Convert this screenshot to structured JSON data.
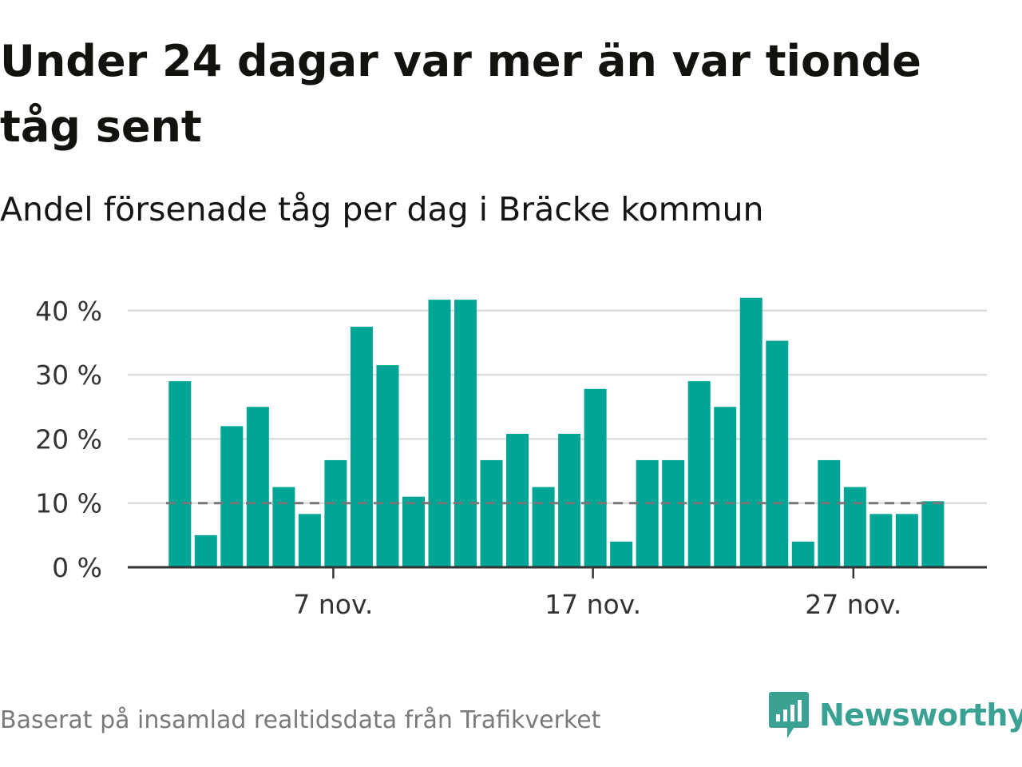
{
  "title": "Under 24 dagar var mer än var tionde tåg sent",
  "subtitle": "Andel försenade tåg per dag i Bräcke kommun",
  "footer": {
    "source": "Baserat på insamlad realtidsdata från Trafikverket"
  },
  "brand": {
    "name": "Newsworthy",
    "icon": "newsworthy-logo-icon"
  },
  "colors": {
    "bar": "#00a596",
    "reference_line": "#777777",
    "grid": "#dddddd",
    "axis": "#333333",
    "brand": "#3aa193"
  },
  "chart_data": {
    "type": "bar",
    "x_start": "1 nov.",
    "x": [
      "1",
      "2",
      "3",
      "4",
      "5",
      "6",
      "7",
      "8",
      "9",
      "10",
      "11",
      "12",
      "13",
      "14",
      "15",
      "16",
      "17",
      "18",
      "19",
      "20",
      "21",
      "22",
      "23",
      "24",
      "25",
      "26",
      "27",
      "28",
      "29",
      "30"
    ],
    "values": [
      29,
      5,
      22,
      25,
      12.5,
      8.3,
      16.7,
      37.5,
      31.5,
      11,
      41.7,
      41.7,
      16.7,
      20.8,
      12.5,
      20.8,
      27.8,
      4,
      16.7,
      16.7,
      29,
      25,
      42,
      35.3,
      4,
      16.7,
      12.5,
      8.3,
      8.3,
      10.3
    ],
    "x_ticks": [
      {
        "day": "7",
        "label": "7 nov."
      },
      {
        "day": "17",
        "label": "17 nov."
      },
      {
        "day": "27",
        "label": "27 nov."
      }
    ],
    "y_ticks": [
      {
        "value": 0,
        "label": "0 %"
      },
      {
        "value": 10,
        "label": "10 %"
      },
      {
        "value": 20,
        "label": "20 %"
      },
      {
        "value": 30,
        "label": "30 %"
      },
      {
        "value": 40,
        "label": "40 %"
      }
    ],
    "ylim": [
      0,
      43
    ],
    "reference_line": 10,
    "grid": true,
    "legend": "none"
  }
}
